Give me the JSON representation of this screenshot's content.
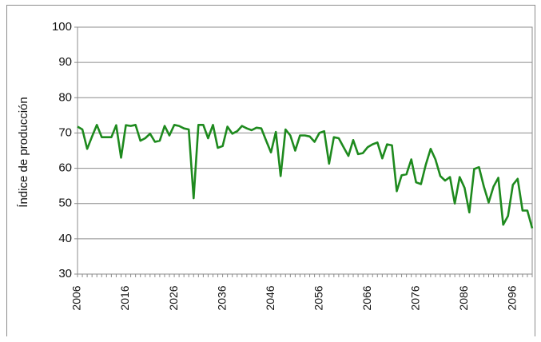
{
  "chart_data": {
    "type": "line",
    "title": "",
    "xlabel": "",
    "ylabel": "Índice de producción",
    "xlim": [
      2006,
      2100
    ],
    "ylim": [
      30,
      100
    ],
    "y_ticks": [
      30,
      40,
      50,
      60,
      70,
      80,
      90,
      100
    ],
    "x_ticks": [
      "2006",
      "2016",
      "2026",
      "2036",
      "2046",
      "2056",
      "2066",
      "2076",
      "2086",
      "2096"
    ],
    "grid": "horizontal",
    "legend": "none",
    "line_color": "#1e8a1e",
    "series": [
      {
        "x": [
          2006,
          2007,
          2008,
          2009,
          2010,
          2011,
          2012,
          2013,
          2014,
          2015,
          2016,
          2017,
          2018,
          2019,
          2020,
          2021,
          2022,
          2023,
          2024,
          2025,
          2026,
          2027,
          2028,
          2029,
          2030,
          2031,
          2032,
          2033,
          2034,
          2035,
          2036,
          2037,
          2038,
          2039,
          2040,
          2041,
          2042,
          2043,
          2044,
          2045,
          2046,
          2047,
          2048,
          2049,
          2050,
          2051,
          2052,
          2053,
          2054,
          2055,
          2056,
          2057,
          2058,
          2059,
          2060,
          2061,
          2062,
          2063,
          2064,
          2065,
          2066,
          2067,
          2068,
          2069,
          2070,
          2071,
          2072,
          2073,
          2074,
          2075,
          2076,
          2077,
          2078,
          2079,
          2080,
          2081,
          2082,
          2083,
          2084,
          2085,
          2086,
          2087,
          2088,
          2089,
          2090,
          2091,
          2092,
          2093,
          2094,
          2095,
          2096,
          2097,
          2098,
          2099,
          2100
        ],
        "values": [
          71.8,
          71,
          65.5,
          69,
          72.3,
          68.8,
          68.8,
          68.8,
          72.2,
          63,
          72.2,
          72,
          72.3,
          67.8,
          68.5,
          69.8,
          67.5,
          67.8,
          72,
          69.3,
          72.3,
          72,
          71.3,
          71,
          51.5,
          72.3,
          72.3,
          68.5,
          72.3,
          65.8,
          66.3,
          71.8,
          69.8,
          70.5,
          72,
          71.3,
          70.8,
          71.5,
          71.3,
          67.8,
          64.5,
          70.3,
          57.8,
          71,
          69.3,
          65,
          69.3,
          69.3,
          69,
          67.5,
          70,
          70.5,
          61.3,
          68.8,
          68.5,
          66,
          63.5,
          68,
          64,
          64.3,
          66,
          66.8,
          67.3,
          62.8,
          66.8,
          66.5,
          53.5,
          58,
          58.3,
          62.5,
          56,
          55.5,
          61,
          65.5,
          62.5,
          57.8,
          56.5,
          57.5,
          50,
          57.5,
          54.5,
          47.5,
          59.8,
          60.3,
          54.8,
          50.3,
          54.8,
          57.3,
          44,
          46.5,
          55.3,
          57,
          48,
          48,
          43
        ]
      }
    ]
  }
}
